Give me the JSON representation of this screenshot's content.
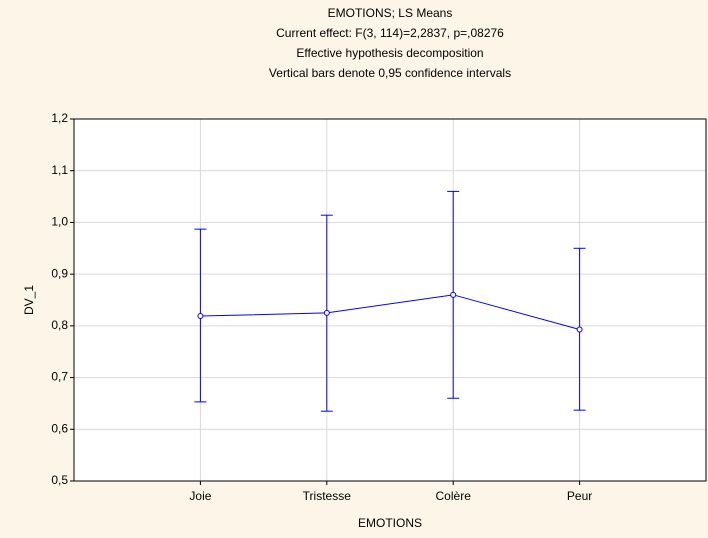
{
  "chart_data": {
    "type": "line",
    "title": "EMOTIONS; LS Means",
    "subtitle": [
      "Current effect: F(3, 114)=2,2837, p=,08276",
      "Effective hypothesis decomposition",
      "Vertical bars denote 0,95 confidence intervals"
    ],
    "x_label": "EMOTIONS",
    "y_label": "DV_1",
    "categories": [
      "Joie",
      "Tristesse",
      "Colère",
      "Peur"
    ],
    "series": [
      {
        "name": "DV_1",
        "color": "#0000ff",
        "values": [
          0.819,
          0.825,
          0.86,
          0.793
        ],
        "lower": [
          0.653,
          0.635,
          0.66,
          0.637
        ],
        "upper": [
          0.987,
          1.014,
          1.06,
          0.95
        ]
      }
    ],
    "ylim": [
      0.5,
      1.2
    ],
    "yticks": [
      {
        "value": 0.5,
        "label": "0,5"
      },
      {
        "value": 0.6,
        "label": "0,6"
      },
      {
        "value": 0.7,
        "label": "0,7"
      },
      {
        "value": 0.8,
        "label": "0,8"
      },
      {
        "value": 0.9,
        "label": "0,9"
      },
      {
        "value": 1.0,
        "label": "1,0"
      },
      {
        "value": 1.1,
        "label": "1,1"
      },
      {
        "value": 1.2,
        "label": "1,2"
      }
    ],
    "grid": true
  }
}
